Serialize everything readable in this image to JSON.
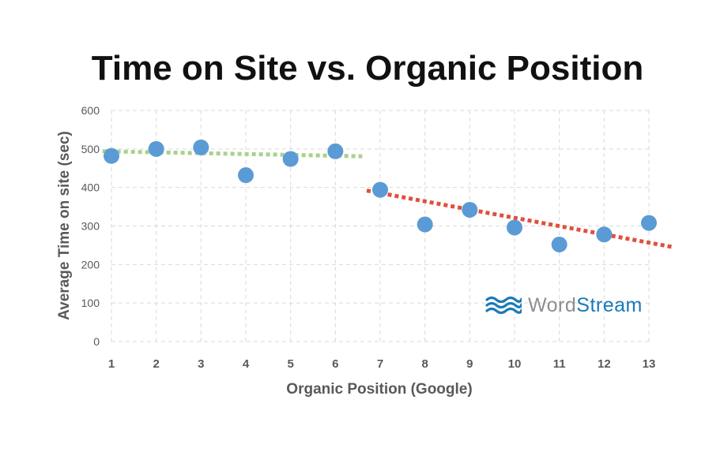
{
  "chart_data": {
    "type": "scatter",
    "title": "Time on Site vs. Organic Position",
    "xlabel": "Organic Position (Google)",
    "ylabel": "Average Time on site (sec)",
    "x": [
      1,
      2,
      3,
      4,
      5,
      6,
      7,
      8,
      9,
      10,
      11,
      12,
      13
    ],
    "y": [
      482,
      500,
      504,
      432,
      474,
      494,
      394,
      304,
      342,
      296,
      252,
      278,
      308
    ],
    "xlim": [
      1,
      13
    ],
    "ylim": [
      0,
      600
    ],
    "x_ticks": [
      "1",
      "2",
      "3",
      "4",
      "5",
      "6",
      "7",
      "8",
      "9",
      "10",
      "11",
      "12",
      "13"
    ],
    "y_ticks": [
      "0",
      "100",
      "200",
      "300",
      "400",
      "500",
      "600"
    ],
    "grid": true,
    "trendlines": [
      {
        "color": "#a9d18e",
        "x_start": 0.8,
        "y_start": 494,
        "x_end": 6.6,
        "y_end": 481
      },
      {
        "color": "#e0503c",
        "x_start": 6.7,
        "y_start": 392,
        "x_end": 13.55,
        "y_end": 245
      }
    ],
    "colors": {
      "points": "#5b9bd5",
      "grid": "#d9d9d9",
      "axis_text": "#595959"
    }
  },
  "logo": {
    "word": "Word",
    "stream": "Stream",
    "icon": "wave-icon"
  }
}
